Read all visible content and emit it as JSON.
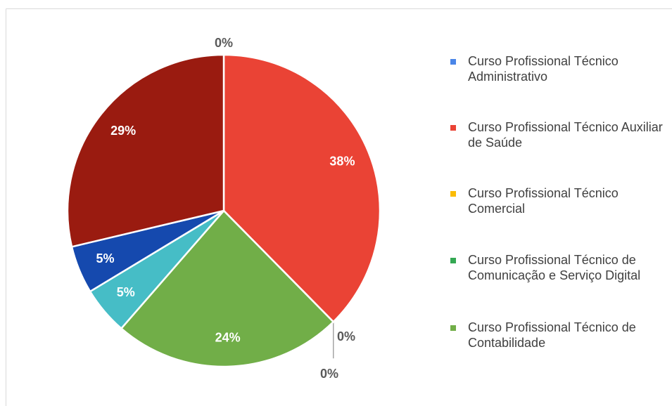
{
  "chart_data": {
    "type": "pie",
    "categories": [
      "Curso Profissional Técnico Administrativo",
      "Curso Profissional Técnico Auxiliar de Saúde",
      "Curso Profissional Técnico Comercial",
      "Curso Profissional Técnico de Comunicação e Serviço Digital",
      "Curso Profissional Técnico de Contabilidade",
      null,
      null,
      null
    ],
    "values": [
      0,
      38,
      0,
      0,
      24,
      5,
      5,
      29
    ],
    "value_labels": [
      "0%",
      "38%",
      "0%",
      "0%",
      "24%",
      "5%",
      "5%",
      "29%"
    ],
    "colors": [
      "#4a86e8",
      "#ea4335",
      "#fbbc04",
      "#34a853",
      "#71ae48",
      "#46bdc6",
      "#1549ae",
      "#9a1b10"
    ],
    "legend": "right"
  }
}
